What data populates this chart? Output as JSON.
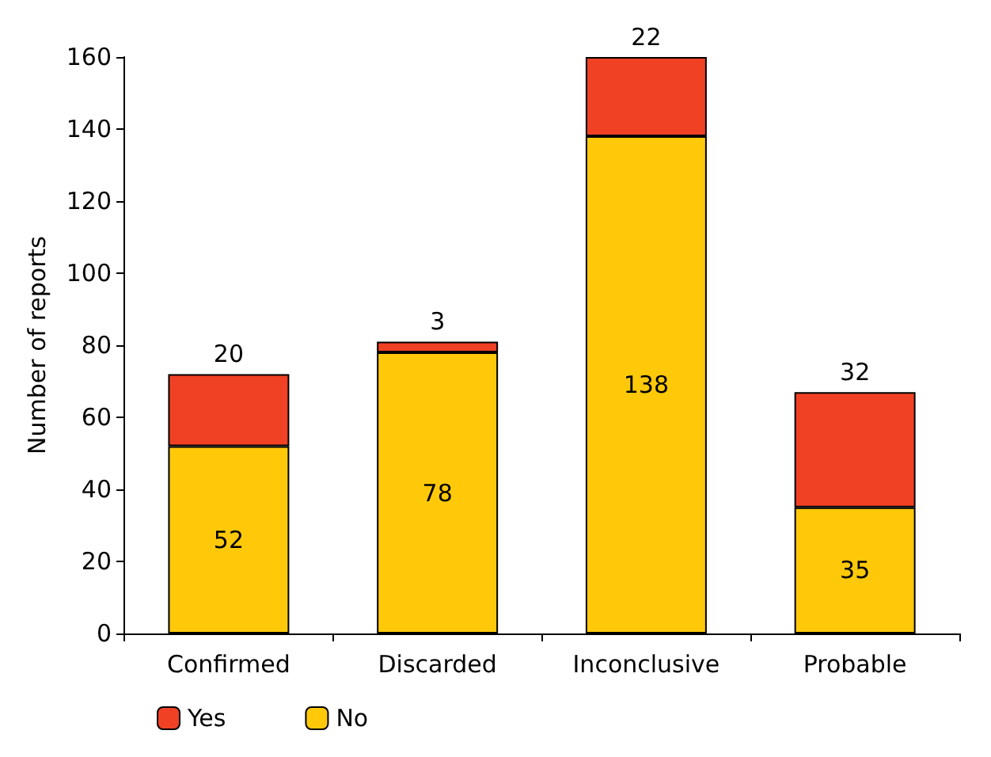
{
  "chart_data": {
    "type": "bar",
    "stacked": true,
    "ylabel": "Number of reports",
    "categories": [
      "Confirmed",
      "Discarded",
      "Inconclusive",
      "Probable"
    ],
    "series": [
      {
        "name": "No",
        "color": "#ffc90a",
        "values": [
          52,
          78,
          138,
          35
        ]
      },
      {
        "name": "Yes",
        "color": "#f04124",
        "values": [
          20,
          3,
          22,
          32
        ]
      }
    ],
    "ylim": [
      0,
      160
    ],
    "yticks": [
      0,
      20,
      40,
      60,
      80,
      100,
      120,
      140,
      160
    ],
    "data_labels": true,
    "grid": false,
    "legend": "bottom left"
  }
}
